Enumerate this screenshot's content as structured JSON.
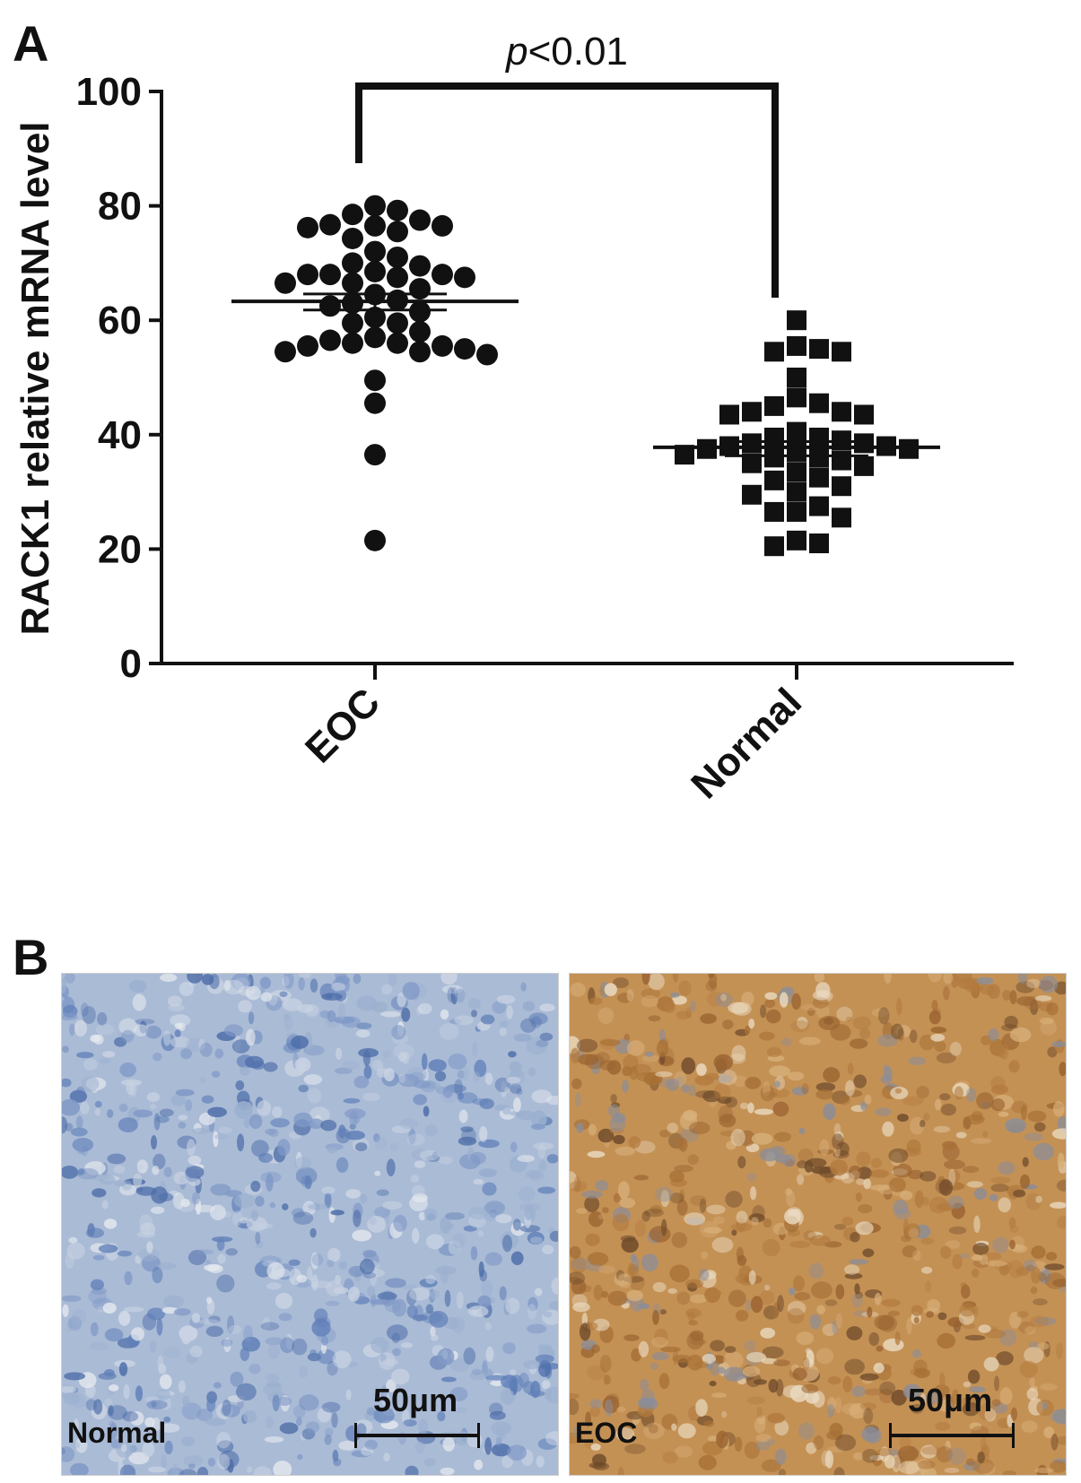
{
  "panels": {
    "a_letter": "A",
    "b_letter": "B"
  },
  "chart_data": {
    "type": "scatter",
    "ylabel": "RACK1 relative mRNA level",
    "ylim": [
      0,
      100
    ],
    "yticks": [
      "0",
      "20",
      "40",
      "60",
      "80",
      "100"
    ],
    "categories": [
      "EOC",
      "Normal"
    ],
    "annotation": {
      "p_symbol": "p",
      "p_rest": "<0.01"
    },
    "series": [
      {
        "category": "EOC",
        "marker": "circle",
        "mean": 63.3,
        "sem": [
          61.8,
          64.6
        ],
        "values": [
          77.5,
          76.5,
          76.2,
          79.2,
          78.5,
          80.0,
          76.5,
          76.7,
          74.3,
          75.5,
          72.0,
          70.0,
          71.0,
          69.5,
          68.0,
          67.5,
          68.5,
          68.0,
          67.5,
          68.0,
          66.5,
          66.5,
          65.5,
          64.5,
          63.5,
          63.0,
          62.5,
          61.5,
          60.5,
          59.5,
          59.5,
          58.0,
          57.0,
          56.0,
          56.5,
          55.5,
          55.0,
          54.5,
          54.5,
          55.5,
          56.0,
          54.0,
          49.5,
          45.5,
          36.5,
          21.5
        ]
      },
      {
        "category": "Normal",
        "marker": "square",
        "mean": 37.8,
        "sem": [
          36.3,
          38.8
        ],
        "values": [
          60.0,
          55.5,
          54.5,
          54.5,
          55.0,
          50.0,
          45.5,
          45.0,
          46.5,
          44.0,
          43.5,
          43.5,
          44.0,
          40.5,
          39.5,
          39.0,
          38.5,
          38.0,
          37.5,
          37.0,
          36.5,
          36.0,
          36.0,
          35.5,
          35.0,
          34.5,
          38.5,
          39.5,
          38.0,
          37.5,
          33.5,
          32.5,
          32.0,
          31.0,
          30.0,
          29.5,
          27.5,
          26.5,
          26.5,
          25.5,
          21.5,
          21.0,
          20.5
        ]
      }
    ]
  },
  "micrographs": [
    {
      "label": "Normal",
      "scale_label": "50μm",
      "stain": "hematoxylin-blue"
    },
    {
      "label": "EOC",
      "scale_label": "50μm",
      "stain": "dab-brown"
    }
  ],
  "colors": {
    "ink": "#111111",
    "normal_tissue": "#9db3d2",
    "eoc_tissue": "#c08a4e"
  }
}
